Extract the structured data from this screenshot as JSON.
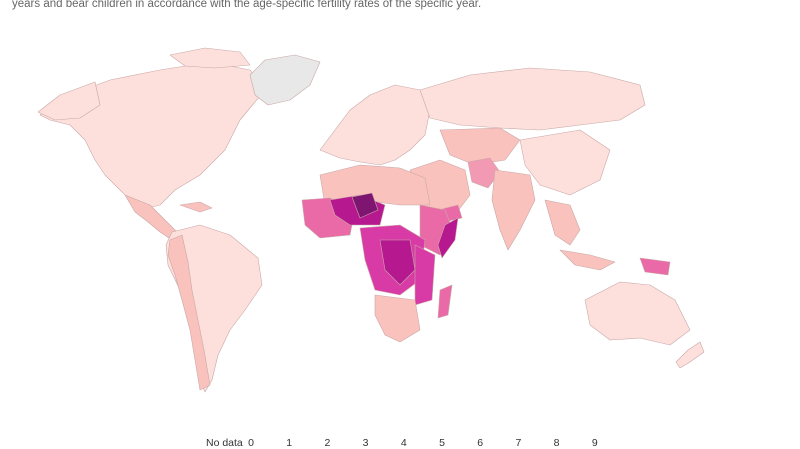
{
  "subtitle": "years and bear children in accordance with the age-specific fertility rates of the specific year.",
  "legend": {
    "no_data_label": "No data",
    "ticks": [
      "0",
      "1",
      "2",
      "3",
      "4",
      "5",
      "6",
      "7",
      "8",
      "9"
    ]
  },
  "colors": {
    "no_data": "#e8e8e8",
    "level_1_2": "#fde0dc",
    "level_2_3": "#f9c2bd",
    "level_3_4": "#f29ab3",
    "level_4_5": "#e96aa6",
    "level_5_6": "#d93ba6",
    "level_6_7": "#b6198f",
    "level_7_8": "#7e1570",
    "border": "#c9a7a7",
    "ocean": "#ffffff"
  }
}
